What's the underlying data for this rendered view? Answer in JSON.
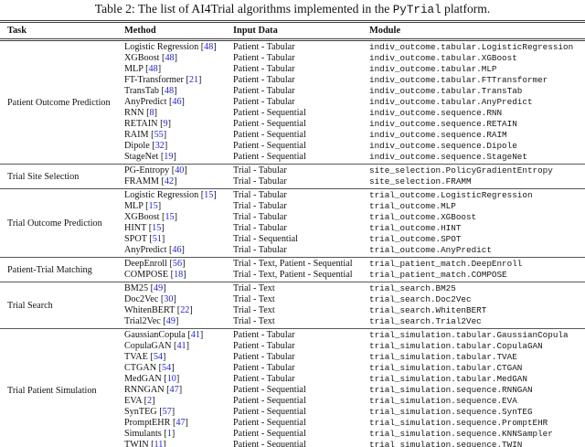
{
  "title": {
    "prefix": "Table 2: The list of AI4Trial algorithms implemented in the ",
    "code": "PyTrial",
    "suffix": " platform."
  },
  "columns": [
    "Task",
    "Method",
    "Input Data",
    "Module"
  ],
  "colors": {
    "citation": "#2525cd",
    "text": "#131313",
    "rule_dark": "#3d3d3d",
    "rule_section": "#565656"
  },
  "sections": [
    {
      "task": "Patient Outcome Prediction",
      "rows": [
        {
          "method": "Logistic Regression",
          "cite": "48",
          "input": "Patient - Tabular",
          "module": "indiv_outcome.tabular.LogisticRegression"
        },
        {
          "method": "XGBoost",
          "cite": "48",
          "input": "Patient - Tabular",
          "module": "indiv_outcome.tabular.XGBoost"
        },
        {
          "method": "MLP",
          "cite": "48",
          "input": "Patient - Tabular",
          "module": "indiv_outcome.tabular.MLP"
        },
        {
          "method": "FT-Transformer",
          "cite": "21",
          "input": "Patient - Tabular",
          "module": "indiv_outcome.tabular.FTTransformer"
        },
        {
          "method": "TransTab",
          "cite": "48",
          "input": "Patient - Tabular",
          "module": "indiv_outcome.tabular.TransTab"
        },
        {
          "method": "AnyPredict",
          "cite": "46",
          "input": "Patient - Tabular",
          "module": "indiv_outcome.tabular.AnyPredict"
        },
        {
          "method": "RNN",
          "cite": "8",
          "input": "Patient - Sequential",
          "module": "indiv_outcome.sequence.RNN"
        },
        {
          "method": "RETAIN",
          "cite": "9",
          "input": "Patient - Sequential",
          "module": "indiv_outcome.sequence.RETAIN"
        },
        {
          "method": "RAIM",
          "cite": "55",
          "input": "Patient - Sequential",
          "module": "indiv_outcome.sequence.RAIM"
        },
        {
          "method": "Dipole",
          "cite": "32",
          "input": "Patient - Sequential",
          "module": "indiv_outcome.sequence.Dipole"
        },
        {
          "method": "StageNet",
          "cite": "19",
          "input": "Patient - Sequential",
          "module": "indiv_outcome.sequence.StageNet"
        }
      ]
    },
    {
      "task": "Trial Site Selection",
      "rows": [
        {
          "method": "PG-Entropy",
          "cite": "40",
          "input": "Trial - Tabular",
          "module": "site_selection.PolicyGradientEntropy"
        },
        {
          "method": "FRAMM",
          "cite": "42",
          "input": "Trial - Tabular",
          "module": "site_selection.FRAMM"
        }
      ]
    },
    {
      "task": "Trial Outcome Prediction",
      "rows": [
        {
          "method": "Logistic Regression",
          "cite": "15",
          "input": "Trial - Tabular",
          "module": "trial_outcome.LogisticRegression"
        },
        {
          "method": "MLP",
          "cite": "15",
          "input": "Trial - Tabular",
          "module": "trial_outcome.MLP"
        },
        {
          "method": "XGBoost",
          "cite": "15",
          "input": "Trial - Tabular",
          "module": "trial_outcome.XGBoost"
        },
        {
          "method": "HINT",
          "cite": "15",
          "input": "Trial - Tabular",
          "module": "trial_outcome.HINT"
        },
        {
          "method": "SPOT",
          "cite": "51",
          "input": "Trial - Sequential",
          "module": "trial_outcome.SPOT"
        },
        {
          "method": "AnyPredict",
          "cite": "46",
          "input": "Trial - Tabular",
          "module": "trial_outcome.AnyPredict"
        }
      ]
    },
    {
      "task": "Patient-Trial Matching",
      "rows": [
        {
          "method": "DeepEnroll",
          "cite": "56",
          "input": "Trial - Text, Patient - Sequential",
          "module": "trial_patient_match.DeepEnroll"
        },
        {
          "method": "COMPOSE",
          "cite": "18",
          "input": "Trial - Text, Patient - Sequential",
          "module": "trial_patient_match.COMPOSE"
        }
      ]
    },
    {
      "task": "Trial Search",
      "rows": [
        {
          "method": "BM25",
          "cite": "49",
          "input": "Trial - Text",
          "module": "trial_search.BM25"
        },
        {
          "method": "Doc2Vec",
          "cite": "30",
          "input": "Trial - Text",
          "module": "trial_search.Doc2Vec"
        },
        {
          "method": "WhitenBERT",
          "cite": "22",
          "input": "Trial - Text",
          "module": "trial_search.WhitenBERT"
        },
        {
          "method": "Trial2Vec",
          "cite": "49",
          "input": "Trial - Text",
          "module": "trial_search.Trial2Vec"
        }
      ]
    },
    {
      "task": "Trial Patient Simulation",
      "rows": [
        {
          "method": "GaussianCopula",
          "cite": "41",
          "input": "Patient - Tabular",
          "module": "trial_simulation.tabular.GaussianCopula"
        },
        {
          "method": "CopulaGAN",
          "cite": "41",
          "input": "Patient - Tabular",
          "module": "trial_simulation.tabular.CopulaGAN"
        },
        {
          "method": "TVAE",
          "cite": "54",
          "input": "Patient - Tabular",
          "module": "trial_simulation.tabular.TVAE"
        },
        {
          "method": "CTGAN",
          "cite": "54",
          "input": "Patient - Tabular",
          "module": "trial_simulation.tabular.CTGAN"
        },
        {
          "method": "MedGAN",
          "cite": "10",
          "input": "Patient - Tabular",
          "module": "trial_simulation.tabular.MedGAN"
        },
        {
          "method": "RNNGAN",
          "cite": "47",
          "input": "Patient - Sequential",
          "module": "trial_simulation.sequence.RNNGAN"
        },
        {
          "method": "EVA",
          "cite": "2",
          "input": "Patient - Sequential",
          "module": "trial_simulation.sequence.EVA"
        },
        {
          "method": "SynTEG",
          "cite": "57",
          "input": "Patient - Sequential",
          "module": "trial_simulation.sequence.SynTEG"
        },
        {
          "method": "PromptEHR",
          "cite": "47",
          "input": "Patient - Sequential",
          "module": "trial_simulation.sequence.PromptEHR"
        },
        {
          "method": "Simulants",
          "cite": "1",
          "input": "Patient - Sequential",
          "module": "trial_simulation.sequence.KNNSampler"
        },
        {
          "method": "TWIN",
          "cite": "11",
          "input": "Patient - Sequential",
          "module": "trial_simulation.sequence.TWIN"
        }
      ]
    }
  ]
}
